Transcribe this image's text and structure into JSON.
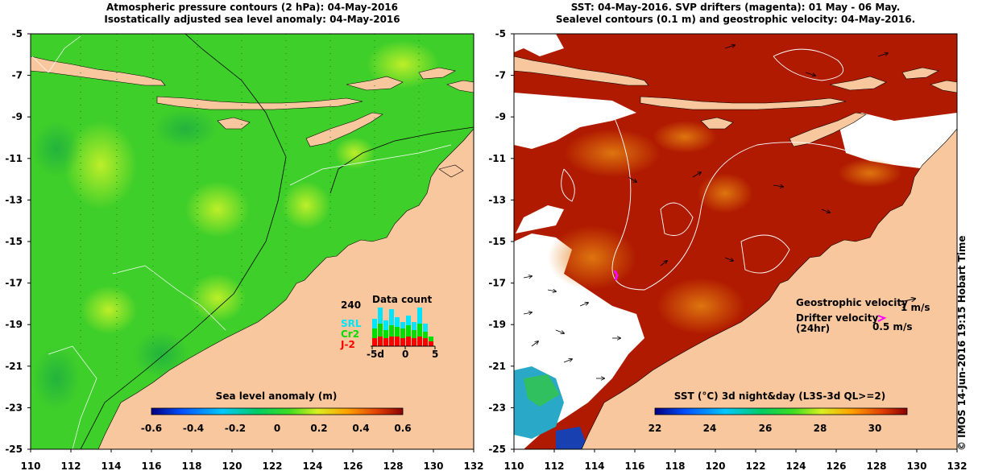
{
  "left_panel": {
    "title_line1": "Atmospheric pressure contours (2 hPa): 04-May-2016",
    "title_line2": "Isostatically adjusted sea level anomaly: 04-May-2016",
    "colorbar_label": "Sea level anomaly (m)",
    "colorbar_ticks": [
      "-0.6",
      "-0.4",
      "-0.2",
      "0",
      "0.2",
      "0.4",
      "0.6"
    ],
    "data_count": {
      "title": "Data count",
      "ymax_label": "240",
      "x_ticks": [
        "-5d",
        "0",
        "5"
      ],
      "series": [
        {
          "name": "SRL",
          "color": "#00e5ff"
        },
        {
          "name": "Cr2",
          "color": "#00dd00"
        },
        {
          "name": "J-2",
          "color": "#ff0000"
        }
      ]
    }
  },
  "right_panel": {
    "title_line1": "SST: 04-May-2016. SVP drifters (magenta): 01 May - 06 May.",
    "title_line2": "Sealevel contours (0.1 m) and geostrophic velocity: 04-May-2016.",
    "colorbar_label": "SST (°C) 3d night&day (L3S-3d QL>=2)",
    "colorbar_ticks": [
      "22",
      "24",
      "26",
      "28",
      "30"
    ],
    "legend": {
      "geostrophic_label": "Geostrophic velocity",
      "geostrophic_scale": "1 m/s",
      "drifter_label": "Drifter velocity",
      "drifter_sub": "(24hr)",
      "drifter_scale": "0.5 m/s"
    }
  },
  "axes": {
    "x_ticks": [
      "110",
      "112",
      "114",
      "116",
      "118",
      "120",
      "122",
      "124",
      "126",
      "128",
      "130",
      "132"
    ],
    "y_ticks": [
      "-5",
      "-7",
      "-9",
      "-11",
      "-13",
      "-15",
      "-17",
      "-19",
      "-21",
      "-23",
      "-25"
    ]
  },
  "credit": "© IMOS 14-Jun-2016 19:15 Hobart Time",
  "colors": {
    "land": "#f9c79e",
    "ocean_green": "#3fcf2a",
    "ocean_yellow": "#b8ee22",
    "sst_red": "#b01a00",
    "sst_orange": "#d9600a"
  }
}
